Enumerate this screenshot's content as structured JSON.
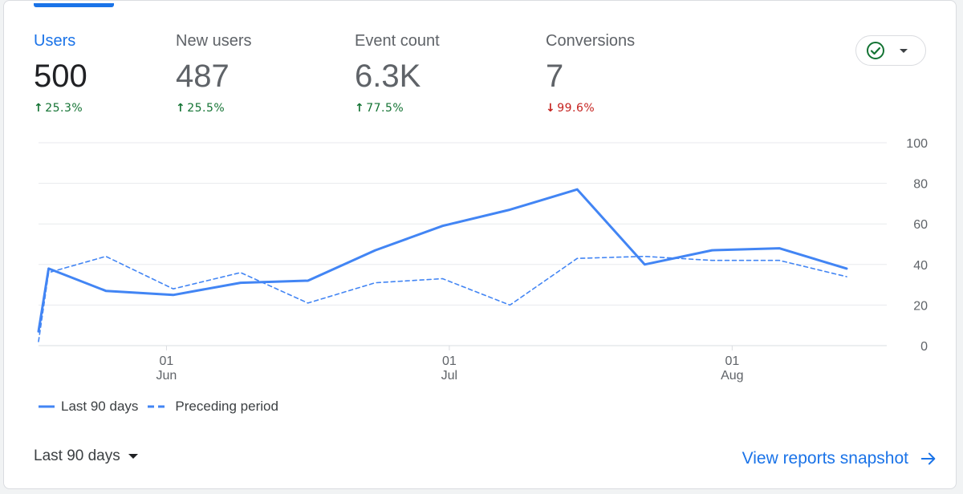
{
  "metrics": [
    {
      "label": "Users",
      "value": "500",
      "change": "25.3%",
      "direction": "up",
      "active": true
    },
    {
      "label": "New users",
      "value": "487",
      "change": "25.5%",
      "direction": "up",
      "active": false
    },
    {
      "label": "Event count",
      "value": "6.3K",
      "change": "77.5%",
      "direction": "up",
      "active": false
    },
    {
      "label": "Conversions",
      "value": "7",
      "change": "99.6%",
      "direction": "down",
      "active": false
    }
  ],
  "status_button": {
    "icon": "check-circle-icon",
    "caret_icon": "caret-down-icon"
  },
  "legend": {
    "current_label": "Last 90 days",
    "previous_label": "Preceding period"
  },
  "range_selector": {
    "label": "Last 90 days"
  },
  "snapshot_link": {
    "label": "View reports snapshot"
  },
  "colors": {
    "accent": "#1a73e8",
    "series": "#4285f4",
    "positive": "#137333",
    "negative": "#c5221f"
  },
  "chart_data": {
    "type": "line",
    "title": "",
    "xlabel": "",
    "ylabel": "",
    "ylim": [
      0,
      100
    ],
    "y_ticks": [
      0,
      20,
      40,
      60,
      80,
      100
    ],
    "x_ticks": [
      {
        "day": "01",
        "month": "Jun",
        "x": 1.9
      },
      {
        "day": "01",
        "month": "Jul",
        "x": 6.1
      },
      {
        "day": "01",
        "month": "Aug",
        "x": 10.3
      }
    ],
    "grid": true,
    "legend_position": "bottom-left",
    "series": [
      {
        "name": "Last 90 days",
        "style": "solid",
        "x": [
          0,
          0.15,
          1,
          2,
          3,
          4,
          5,
          6,
          7,
          8,
          9,
          10,
          11,
          12
        ],
        "values": [
          7,
          38,
          27,
          25,
          31,
          32,
          47,
          59,
          67,
          77,
          40,
          47,
          48,
          38
        ]
      },
      {
        "name": "Preceding period",
        "style": "dashed",
        "x": [
          0,
          0.15,
          1,
          2,
          3,
          4,
          5,
          6,
          7,
          8,
          9,
          10,
          11,
          12
        ],
        "values": [
          2,
          36,
          44,
          28,
          36,
          21,
          31,
          33,
          20,
          43,
          44,
          42,
          42,
          34
        ]
      }
    ]
  }
}
